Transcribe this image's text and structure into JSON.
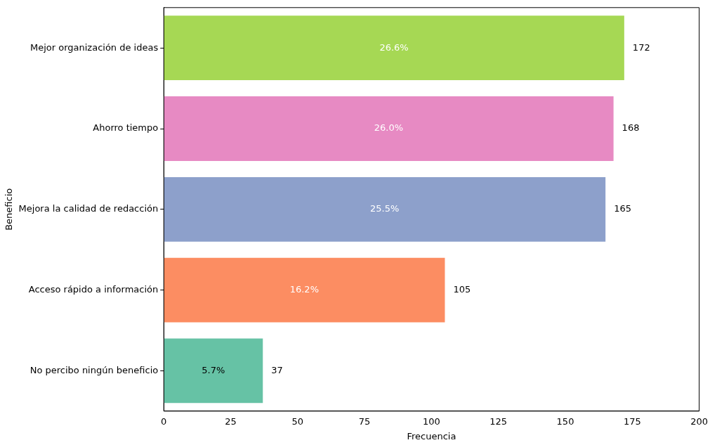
{
  "chart_data": {
    "type": "bar",
    "orientation": "horizontal",
    "categories": [
      "Mejor organización de ideas",
      "Ahorro tiempo",
      "Mejora la calidad de redacción",
      "Acceso rápido a información",
      "No percibo ningún beneficio"
    ],
    "values": [
      172,
      168,
      165,
      105,
      37
    ],
    "colors": [
      "#a6d854",
      "#e78ac3",
      "#8da0cb",
      "#fc8d62",
      "#66c2a5"
    ],
    "xlim": [
      0,
      200
    ],
    "xticks": [
      0,
      25,
      50,
      75,
      100,
      125,
      150,
      175,
      200
    ],
    "xlabel": "Frecuencia",
    "ylabel": "Beneficio",
    "grid": false,
    "legend": false,
    "data_labels": true,
    "annotations": [
      "26.6%",
      "26.0%",
      "25.5%",
      "16.2%",
      "5.7%"
    ]
  }
}
